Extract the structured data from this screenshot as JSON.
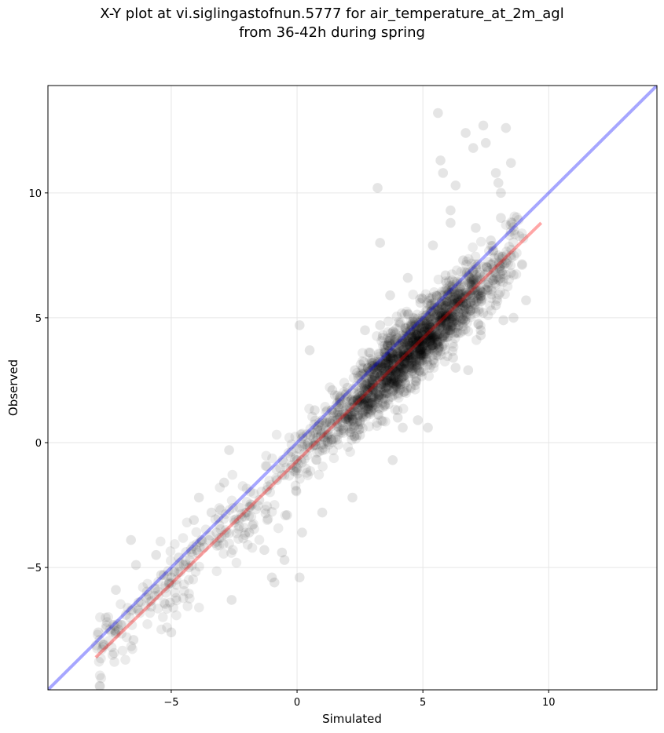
{
  "chart_data": {
    "type": "scatter",
    "title": "X-Y plot at vi.siglingastofnun.5777 for air_temperature_at_2m_agl",
    "subtitle": "from 36-42h during spring",
    "xlabel": "Simulated",
    "ylabel": "Observed",
    "xlim": [
      -9.9,
      14.3
    ],
    "ylim": [
      -9.9,
      14.3
    ],
    "xticks": [
      -5,
      0,
      5,
      10
    ],
    "yticks": [
      -5,
      0,
      5,
      10
    ],
    "xtick_labels": [
      "−5",
      "0",
      "5",
      "10"
    ],
    "ytick_labels": [
      "−5",
      "0",
      "5",
      "10"
    ],
    "grid": true,
    "point_color": "#000000",
    "identity_line": {
      "x": [
        -9.9,
        14.3
      ],
      "y": [
        -9.9,
        14.3
      ],
      "color": "#0000ff"
    },
    "fit_line": {
      "x": [
        -8.0,
        9.7
      ],
      "y": [
        -8.6,
        8.8
      ],
      "color": "#ff0000"
    },
    "points": {
      "x": [
        5.6,
        6.7,
        7.4,
        7.0,
        7.5,
        8.3,
        5.7,
        5.8,
        7.9,
        8.0,
        8.1,
        6.3,
        8.5,
        3.2,
        6.1,
        8.1,
        3.3,
        9.1,
        8.6,
        7.9,
        7.3,
        8.2,
        5.9,
        3.3,
        0.1,
        0.5,
        -2.7,
        -2.9,
        -2.3,
        -3.9,
        -3.4,
        -6.6,
        -6.4,
        -7.2,
        -7.9,
        -7.7,
        -5.3,
        -5.0,
        -7.3,
        -6.5,
        0.1,
        -1.0,
        -0.9,
        -0.6,
        0.2,
        1.0,
        -0.4,
        -1.9,
        -1.3,
        -4.1,
        -3.8,
        -4.7,
        -5.6,
        -2.6,
        -0.5,
        2.2,
        3.8,
        2.5,
        4.2,
        4.8,
        5.2,
        6.8,
        6.2,
        7.3,
        4.0,
        1.5,
        1.0,
        2.0,
        3.0,
        3.5,
        4.5,
        5.5,
        6.5,
        7.0,
        7.8,
        6.0,
        5.0,
        4.0,
        3.6,
        2.8,
        2.4,
        1.8,
        1.2,
        0.5,
        0.0,
        -0.5,
        -1.5,
        -2.0,
        -3.0,
        -4.0,
        -5.0,
        -6.0,
        -6.8,
        -4.5,
        -3.5,
        -2.5,
        8.0,
        8.3,
        7.6,
        6.9,
        6.4,
        5.8,
        5.3,
        4.6,
        3.9,
        4.3,
        3.1,
        2.6,
        2.1,
        1.6,
        0.8,
        0.3,
        -0.2,
        -0.8,
        -1.2,
        -1.8,
        -2.2,
        -3.2,
        -3.7,
        -4.3,
        -5.4,
        -5.9,
        -6.3,
        -7.0,
        7.7,
        6.6,
        5.9,
        4.9,
        4.1,
        3.4,
        2.9,
        2.3,
        1.4,
        0.7,
        6.1,
        7.1,
        5.4,
        4.4,
        3.7,
        6.3,
        7.4,
        5.6,
        4.7,
        2.7
      ],
      "y": [
        13.2,
        12.4,
        12.7,
        11.8,
        12.0,
        12.6,
        11.3,
        10.8,
        10.8,
        10.4,
        10.0,
        10.3,
        11.2,
        10.2,
        9.3,
        9.0,
        8.0,
        5.7,
        5.0,
        5.5,
        4.5,
        4.9,
        5.1,
        4.7,
        4.7,
        3.7,
        -0.3,
        -1.6,
        -2.6,
        -2.2,
        -2.8,
        -3.9,
        -4.9,
        -5.9,
        -7.6,
        -8.1,
        -5.3,
        -7.6,
        -7.3,
        -7.9,
        -5.4,
        -5.4,
        -5.6,
        -4.4,
        -3.6,
        -2.8,
        -2.9,
        -3.6,
        -4.3,
        -3.1,
        -3.9,
        -4.6,
        -4.5,
        -6.3,
        -4.7,
        -2.2,
        -0.7,
        0.3,
        0.6,
        0.9,
        0.6,
        2.9,
        3.4,
        4.3,
        1.0,
        1.9,
        0.9,
        2.2,
        3.2,
        3.5,
        4.5,
        5.4,
        6.4,
        6.9,
        7.7,
        6.1,
        5.0,
        3.6,
        2.5,
        2.0,
        1.6,
        0.8,
        0.3,
        -0.2,
        -0.7,
        -1.3,
        -2.3,
        -2.8,
        -3.8,
        -4.3,
        -5.4,
        -6.2,
        -6.9,
        -4.9,
        -3.9,
        -3.1,
        7.5,
        7.2,
        6.4,
        5.9,
        5.6,
        4.8,
        4.3,
        3.9,
        3.1,
        2.4,
        2.6,
        1.9,
        1.4,
        1.0,
        0.2,
        -0.4,
        -0.9,
        -1.5,
        -1.9,
        -2.5,
        -3.0,
        -3.6,
        -4.2,
        -5.0,
        -5.3,
        -6.1,
        -6.4,
        -7.3,
        8.1,
        7.3,
        6.7,
        5.6,
        4.8,
        4.2,
        3.6,
        2.9,
        2.1,
        1.3,
        8.8,
        8.6,
        7.9,
        6.6,
        5.9,
        3.0,
        5.2,
        4.0,
        2.3,
        4.5
      ]
    }
  }
}
